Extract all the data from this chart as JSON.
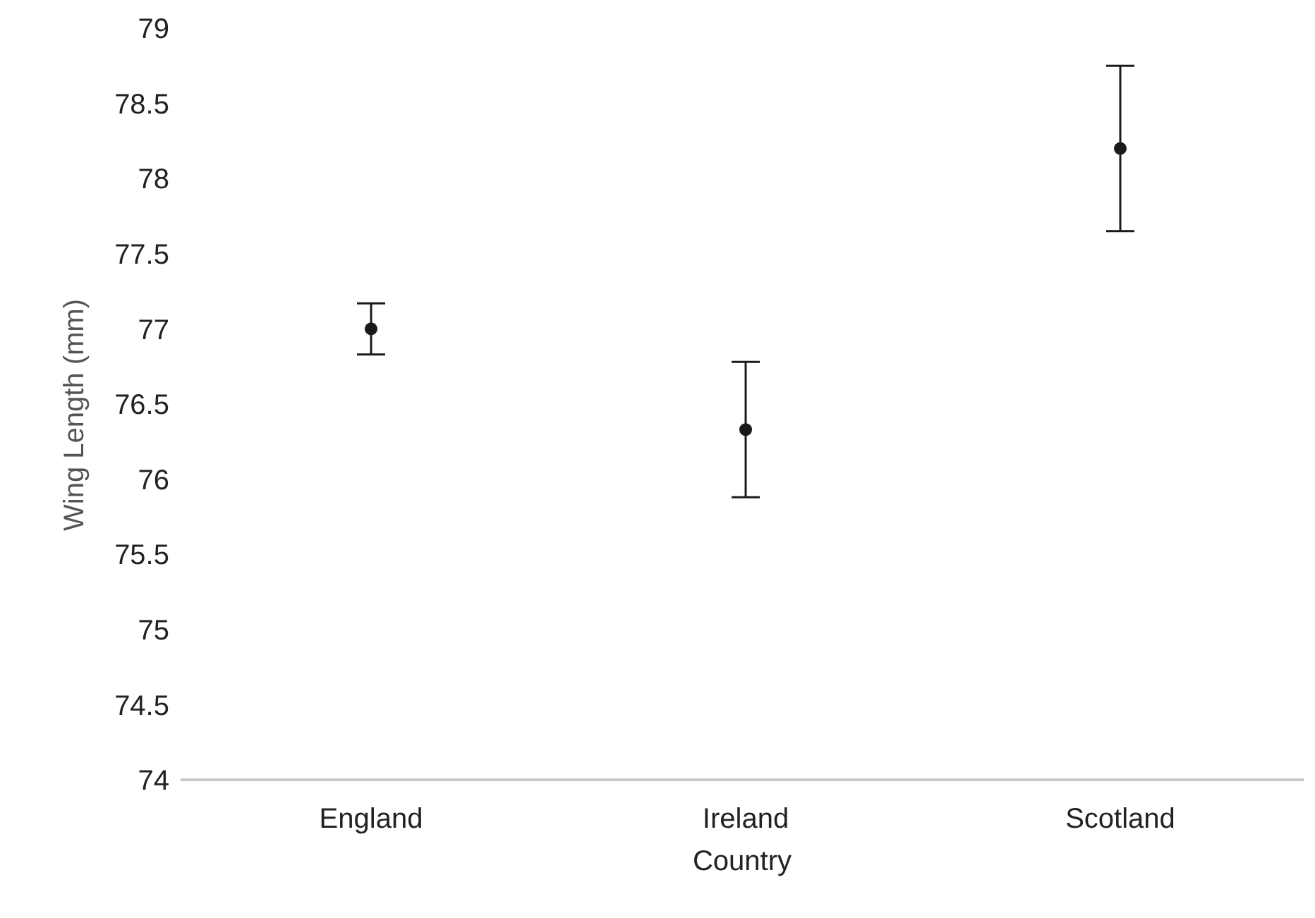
{
  "chart_data": {
    "type": "scatter",
    "xlabel": "Country",
    "ylabel": "Wing Length (mm)",
    "categories": [
      "England",
      "Ireland",
      "Scotland"
    ],
    "series": [
      {
        "color": "#1a1a1a",
        "values": [
          77.0,
          76.33,
          78.2
        ],
        "errors": [
          0.17,
          0.45,
          0.55
        ]
      }
    ],
    "ylim": [
      74,
      79
    ],
    "yticks": [
      74,
      74.5,
      75,
      75.5,
      76,
      76.5,
      77,
      77.5,
      78,
      78.5,
      79
    ],
    "grid": false,
    "legend": false,
    "marker": "circle"
  }
}
